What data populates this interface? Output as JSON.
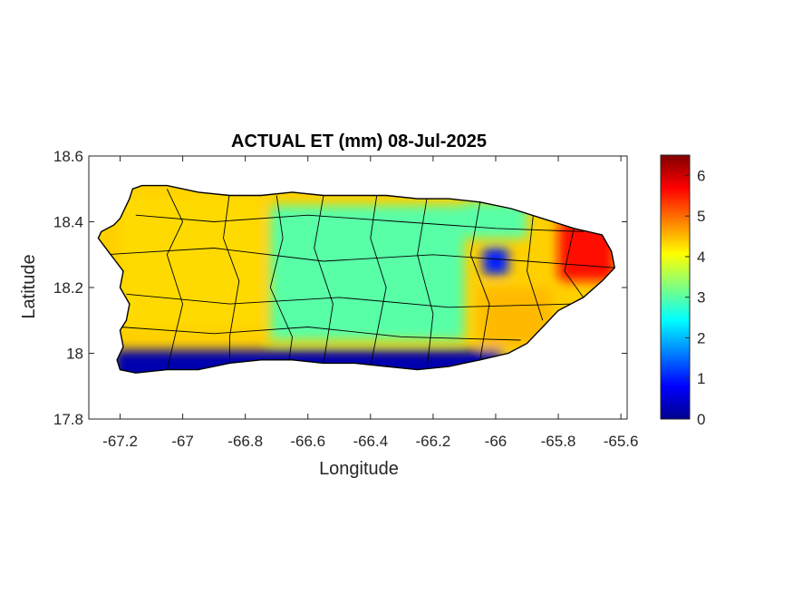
{
  "chart_data": {
    "type": "heatmap",
    "title": "ACTUAL ET (mm) 08-Jul-2025",
    "xlabel": "Longitude",
    "ylabel": "Latitude",
    "xlim": [
      -67.3,
      -65.58
    ],
    "ylim": [
      17.8,
      18.6
    ],
    "xticks": [
      -67.2,
      -67,
      -66.8,
      -66.6,
      -66.4,
      -66.2,
      -66,
      -65.8,
      -65.6
    ],
    "xtick_labels": [
      "-67.2",
      "-67",
      "-66.8",
      "-66.6",
      "-66.4",
      "-66.2",
      "-66",
      "-65.8",
      "-65.6"
    ],
    "yticks": [
      17.8,
      18,
      18.2,
      18.4,
      18.6
    ],
    "ytick_labels": [
      "17.8",
      "18",
      "18.2",
      "18.4",
      "18.6"
    ],
    "grid": false,
    "colormap": "jet",
    "colorbar": {
      "range": [
        0,
        6.5
      ],
      "ticks": [
        0,
        1,
        2,
        3,
        4,
        5,
        6
      ],
      "tick_labels": [
        "0",
        "1",
        "2",
        "3",
        "4",
        "5",
        "6"
      ]
    },
    "island_outline": [
      [
        -67.26,
        18.37
      ],
      [
        -67.22,
        18.39
      ],
      [
        -67.2,
        18.41
      ],
      [
        -67.17,
        18.47
      ],
      [
        -67.16,
        18.5
      ],
      [
        -67.13,
        18.51
      ],
      [
        -67.05,
        18.51
      ],
      [
        -66.95,
        18.49
      ],
      [
        -66.85,
        18.48
      ],
      [
        -66.75,
        18.48
      ],
      [
        -66.65,
        18.49
      ],
      [
        -66.55,
        18.48
      ],
      [
        -66.45,
        18.48
      ],
      [
        -66.35,
        18.48
      ],
      [
        -66.25,
        18.47
      ],
      [
        -66.15,
        18.47
      ],
      [
        -66.05,
        18.46
      ],
      [
        -65.95,
        18.44
      ],
      [
        -65.85,
        18.41
      ],
      [
        -65.75,
        18.38
      ],
      [
        -65.66,
        18.36
      ],
      [
        -65.63,
        18.31
      ],
      [
        -65.62,
        18.26
      ],
      [
        -65.66,
        18.22
      ],
      [
        -65.72,
        18.17
      ],
      [
        -65.8,
        18.13
      ],
      [
        -65.85,
        18.08
      ],
      [
        -65.9,
        18.03
      ],
      [
        -65.96,
        18.0
      ],
      [
        -66.05,
        17.98
      ],
      [
        -66.15,
        17.96
      ],
      [
        -66.25,
        17.95
      ],
      [
        -66.35,
        17.96
      ],
      [
        -66.45,
        17.97
      ],
      [
        -66.55,
        17.97
      ],
      [
        -66.65,
        17.98
      ],
      [
        -66.75,
        17.98
      ],
      [
        -66.85,
        17.97
      ],
      [
        -66.95,
        17.95
      ],
      [
        -67.05,
        17.95
      ],
      [
        -67.15,
        17.94
      ],
      [
        -67.2,
        17.95
      ],
      [
        -67.21,
        17.98
      ],
      [
        -67.19,
        18.02
      ],
      [
        -67.2,
        18.07
      ],
      [
        -67.18,
        18.1
      ],
      [
        -67.17,
        18.15
      ],
      [
        -67.2,
        18.2
      ],
      [
        -67.19,
        18.25
      ],
      [
        -67.23,
        18.3
      ],
      [
        -67.27,
        18.35
      ],
      [
        -67.26,
        18.37
      ]
    ],
    "value_zones": [
      {
        "region": "south coast",
        "value": 0.3
      },
      {
        "region": "southeast of San Juan",
        "value": 1.0
      },
      {
        "region": "west interior",
        "value": 4.3
      },
      {
        "region": "central interior",
        "value": 3.0
      },
      {
        "region": "northeast",
        "value": 5.6
      },
      {
        "region": "southeast",
        "value": 4.5
      }
    ]
  }
}
